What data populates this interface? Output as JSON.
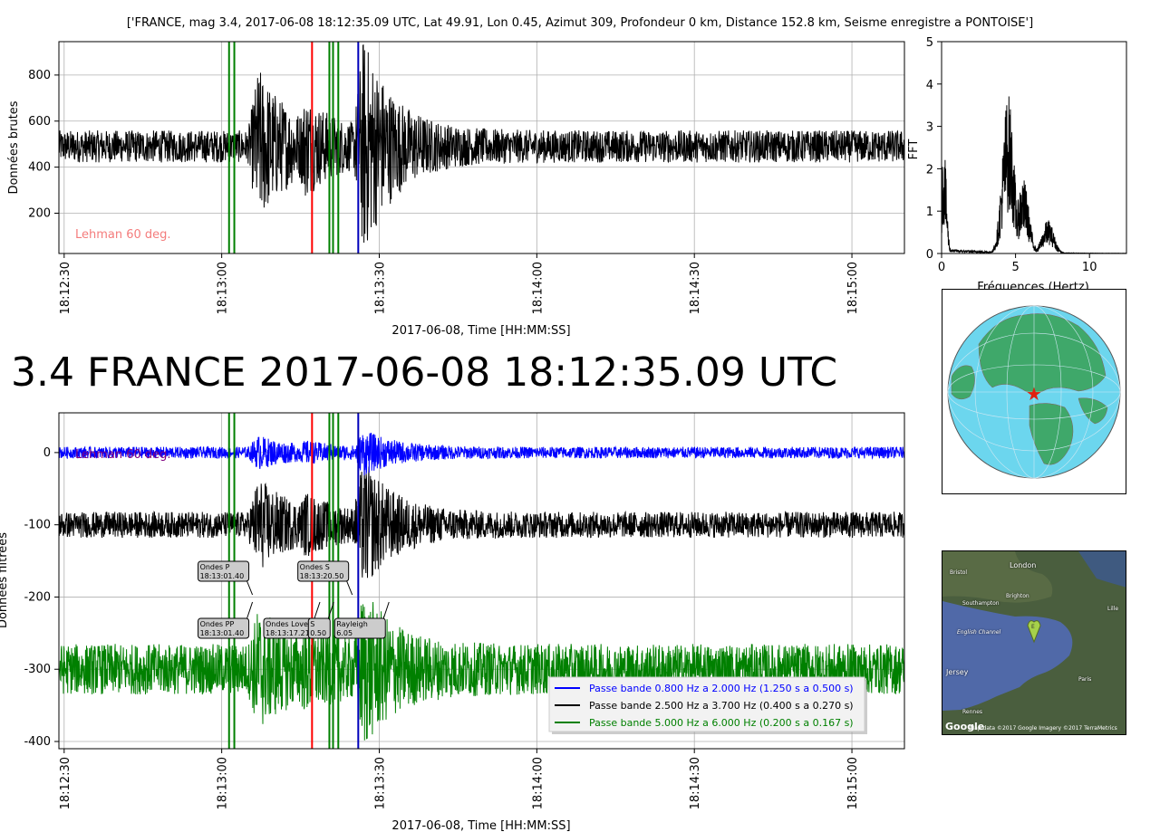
{
  "header_text": "['FRANCE, mag 3.4, 2017-06-08 18:12:35.09 UTC, Lat 49.91, Lon 0.45, Azimut 309, Profondeur 0 km, Distance 152.8 km, Seisme enregistre a PONTOISE']",
  "big_title": "3.4 FRANCE 2017-06-08 18:12:35.09 UTC",
  "colors": {
    "raw": "#000000",
    "blue": "#0000ff",
    "black": "#000000",
    "green": "#008000",
    "p_lines": "#008000",
    "s_red": "#ff0000",
    "rayleigh_blue": "#0000bb",
    "title": "#f47c7c",
    "annotation": "#f47c7c",
    "lehman_filtered": "#800080"
  },
  "chart_data": [
    {
      "id": "raw",
      "type": "line",
      "ylabel": "Données brutes",
      "xlabel": "2017-06-08, Time [HH:MM:SS]",
      "xlim": [
        "18:12:29",
        "18:15:10"
      ],
      "ylim": [
        25,
        945
      ],
      "xticks": [
        "18:12:30",
        "18:13:00",
        "18:13:30",
        "18:14:00",
        "18:14:30",
        "18:15:00"
      ],
      "yticks": [
        200,
        400,
        600,
        800
      ],
      "grid": true,
      "annotation": "Lehman 60 deg.",
      "baseline": 490,
      "noise_amplitude": 70,
      "envelope_peaks": [
        {
          "t": "18:13:07",
          "amp": 280
        },
        {
          "t": "18:13:16",
          "amp": 160
        },
        {
          "t": "18:13:27",
          "amp": 420
        }
      ],
      "phase_lines": [
        {
          "t": "18:13:01.4",
          "color": "green"
        },
        {
          "t": "18:13:02.4",
          "color": "green"
        },
        {
          "t": "18:13:17.2",
          "color": "red"
        },
        {
          "t": "18:13:20.5",
          "color": "green"
        },
        {
          "t": "18:13:21.2",
          "color": "green"
        },
        {
          "t": "18:13:22.2",
          "color": "green"
        },
        {
          "t": "18:13:26.0",
          "color": "blue"
        }
      ]
    },
    {
      "id": "fft",
      "type": "line",
      "ylabel": "FFT",
      "xlabel": "Fréquences (Hertz)",
      "xlim": [
        0,
        12.5
      ],
      "ylim": [
        0,
        5
      ],
      "xticks": [
        0,
        5,
        10
      ],
      "yticks": [
        0,
        1,
        2,
        3,
        4,
        5
      ],
      "peaks": [
        {
          "f": 0.15,
          "amp": 2.6
        },
        {
          "f": 4.5,
          "amp": 3.8
        },
        {
          "f": 5.5,
          "amp": 1.8
        },
        {
          "f": 7.2,
          "amp": 0.8
        }
      ]
    },
    {
      "id": "filtered",
      "type": "line",
      "ylabel": "Données filtrées",
      "xlabel": "2017-06-08, Time [HH:MM:SS]",
      "xlim": [
        "18:12:29",
        "18:15:10"
      ],
      "ylim": [
        -410,
        55
      ],
      "xticks": [
        "18:12:30",
        "18:13:00",
        "18:13:30",
        "18:14:00",
        "18:14:30",
        "18:15:00"
      ],
      "yticks": [
        0,
        -100,
        -200,
        -300,
        -400
      ],
      "grid": true,
      "annotation": "Lehman 60 deg.",
      "series": [
        {
          "name": "Passe bande 0.800 Hz a 2.000 Hz (1.250 s a 0.500 s)",
          "color": "blue",
          "offset": 0,
          "amplitude": 8,
          "burst_amp": 25
        },
        {
          "name": "Passe bande 2.500 Hz a 3.700 Hz (0.400 s a 0.270 s)",
          "color": "black",
          "offset": -100,
          "amplitude": 18,
          "burst_amp": 75
        },
        {
          "name": "Passe bande 5.000 Hz a 6.000 Hz (0.200 s a 0.167 s)",
          "color": "green",
          "offset": -300,
          "amplitude": 35,
          "burst_amp": 80
        }
      ],
      "phase_boxes": [
        {
          "label": "Ondes P",
          "time": "18:13:01.40",
          "row": "upper",
          "x_t": "18:12:55.5"
        },
        {
          "label": "Ondes S",
          "time": "18:13:20.50",
          "row": "upper",
          "x_t": "18:13:14.5"
        },
        {
          "label": "Ondes PP",
          "time": "18:13:01.40",
          "row": "lower",
          "x_t": "18:12:55.5"
        },
        {
          "label": "Ondes Love",
          "time": "18:13:17.21",
          "row": "lower",
          "x_t": "18:13:08.0"
        },
        {
          "label": "S",
          "time": "0.50",
          "row": "lower",
          "x_t": "18:13:16.5"
        },
        {
          "label": "Rayleigh",
          "time": "6.05",
          "row": "lower",
          "x_t": "18:13:21.5"
        }
      ],
      "legend_position": "lower-right"
    }
  ],
  "region_map": {
    "labels": [
      "London",
      "Bristol",
      "Southampton",
      "Brighton",
      "English Channel",
      "Jersey",
      "Paris",
      "Lille",
      "Rennes"
    ],
    "google_logo": "Google",
    "attribution": "Map data ©2017 Google Imagery ©2017 TerraMetrics",
    "marker_letter": "E"
  }
}
